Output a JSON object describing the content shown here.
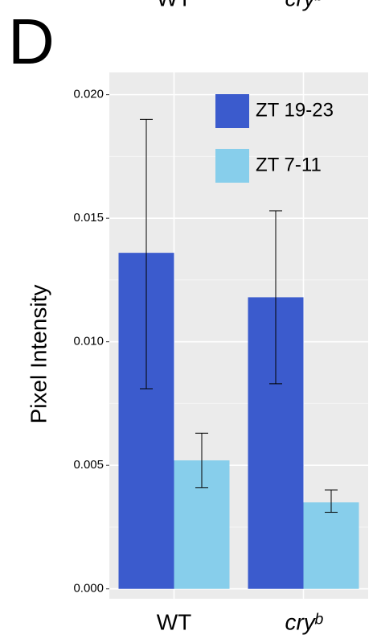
{
  "chart_data": {
    "type": "bar",
    "panel_label": "D",
    "top_labels": [
      "WT",
      "cryᵇ"
    ],
    "ylabel": "Pixel Intensity",
    "categories": [
      "WT",
      "cryᵇ"
    ],
    "category_styles": [
      "normal",
      "italic"
    ],
    "series": [
      {
        "name": "ZT 19-23",
        "color": "#3b5bcd",
        "values": [
          0.0136,
          0.0118
        ],
        "lower": [
          0.0081,
          0.0083
        ],
        "upper": [
          0.019,
          0.0153
        ]
      },
      {
        "name": "ZT 7-11",
        "color": "#87ceeb",
        "values": [
          0.0052,
          0.0035
        ],
        "lower": [
          0.0041,
          0.0031
        ],
        "upper": [
          0.0063,
          0.004
        ]
      }
    ],
    "ylim": [
      -0.0004,
      0.0209
    ],
    "yticks": [
      {
        "value": 0,
        "label": "0.000"
      },
      {
        "value": 0.005,
        "label": "0.005"
      },
      {
        "value": 0.01,
        "label": "0.010"
      },
      {
        "value": 0.015,
        "label": "0.015"
      },
      {
        "value": 0.02,
        "label": "0.020"
      }
    ],
    "grid": true
  }
}
